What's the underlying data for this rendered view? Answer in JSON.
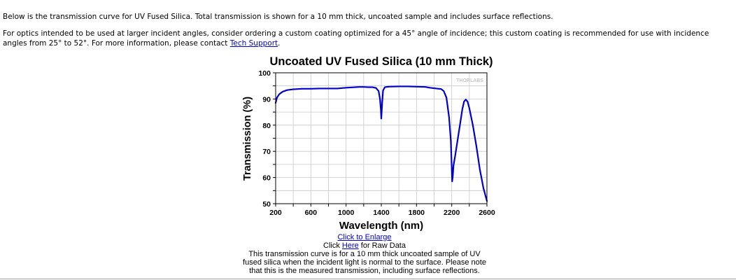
{
  "page": {
    "intro": "Below is the transmission curve for UV Fused Silica. Total transmission is shown for a 10 mm thick, uncoated sample and includes surface reflections.",
    "para2_text": "For optics intended to be used at larger incident angles, consider ordering a custom coating optimized for a 45° angle of incidence; this custom coating is recommended for use with incidence angles from 25° to 52°. For more information, please contact ",
    "para2_link": "Tech Support",
    "para2_end": "."
  },
  "chart_data": {
    "type": "line",
    "title": "Uncoated UV Fused Silica (10 mm Thick)",
    "xlabel": "Wavelength (nm)",
    "ylabel": "Transmission (%)",
    "xlim": [
      200,
      2600
    ],
    "ylim": [
      50,
      100
    ],
    "xticks": [
      200,
      600,
      1000,
      1400,
      1800,
      2200,
      2600
    ],
    "yticks": [
      50,
      60,
      70,
      80,
      90,
      100
    ],
    "grid": true,
    "watermark": "THORLABS",
    "line_color": "#0000cc",
    "series": [
      {
        "x": [
          200,
          215,
          240,
          280,
          330,
          400,
          500,
          600,
          700,
          800,
          900,
          1000,
          1100,
          1150,
          1200,
          1250,
          1300,
          1340,
          1370,
          1385,
          1395,
          1400,
          1410,
          1420,
          1440,
          1480,
          1600,
          1700,
          1800,
          1900,
          1950,
          2000,
          2050,
          2080,
          2110,
          2140,
          2170,
          2190,
          2200,
          2205,
          2212,
          2220,
          2240,
          2270,
          2300,
          2320,
          2340,
          2360,
          2380,
          2400,
          2440,
          2480,
          2520,
          2560,
          2600
        ],
        "y": [
          88.5,
          90.5,
          91.8,
          92.8,
          93.4,
          93.7,
          93.9,
          93.9,
          94.0,
          94.0,
          94.0,
          94.3,
          94.5,
          94.6,
          94.6,
          94.5,
          94.5,
          94.2,
          93.0,
          90.0,
          86.0,
          82.5,
          88.5,
          93.2,
          94.5,
          94.7,
          94.8,
          94.8,
          94.7,
          94.6,
          94.3,
          94.1,
          93.9,
          93.8,
          93.0,
          90.5,
          83.0,
          74.0,
          64.0,
          58.5,
          60.5,
          64.5,
          68.5,
          75.0,
          81.5,
          86.0,
          89.0,
          89.8,
          89.0,
          86.5,
          80.0,
          72.0,
          63.0,
          56.0,
          51.0
        ]
      }
    ]
  },
  "below_chart": {
    "enlarge_link": "Click to Enlarge",
    "raw_prefix": "Click ",
    "raw_link": "Here",
    "raw_suffix": " for Raw Data",
    "caption_lines": [
      "This transmission curve is for a 10 mm thick uncoated sample of UV",
      "fused silica when the incident light is normal to the surface. Please note",
      "that this is the measured transmission, including surface reflections."
    ]
  }
}
